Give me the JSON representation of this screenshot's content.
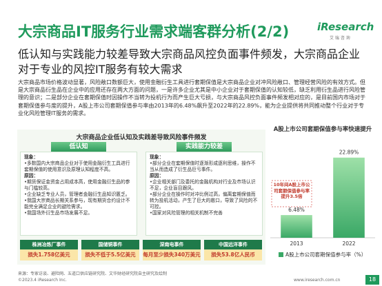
{
  "header": {
    "title": "大宗商品IT服务行业需求端客群分析(2/2)",
    "logo": "iResearch",
    "logo_sub": "艾 瑞 咨 询"
  },
  "headline": "低认知与实践能力较差导致大宗商品风控负面事件频发，大宗商品企业对于专业的风控IT服务有较大需求",
  "body": "大宗商品市场价格波动显著，风险敞口数额巨大，使用金融衍生工具进行套期保值是大宗商品企业对冲风险敞口、管理经营风险的有效方式。但是大宗商品衍生品在企业中的应用还存在两大方面的问题，一是许多企业尤其是中小企业对于套期保值的认知较低，缺乏利用衍生品进行风险管理的意识；二是部分企业在套期保值时因操作不当转为投机行为而产生巨大亏损，与大宗商品风控负面事件频发相对应的，是目前国内市场对于套期保值参与度的提升，A股上市公司套期保值参与率由2013年的6.48%飙升至2022年的22.89%，能为企业提供将共同推动整个行业对于专业化风险管理IT服务的需求。",
  "panel": {
    "title": "大宗商品企业低认知及实践差导致风险事件频发",
    "columns": [
      {
        "tab": "低认知",
        "phenomenon_label": "现象：",
        "phenomenon": [
          "•多数国内大宗商品企业对于使用金融衍生工具进行套期保值的使用意识及原理认知程度不高。"
        ],
        "cause_label": "原因：",
        "causes": [
          "•期货保证金资金占用成本高，使用金融衍生品的参与门槛较高。",
          "•企业缺乏专业人员，管理者金融衍生品知识匮乏。",
          "•我国大宗商品长期关系参与，现有期货合约设计不能完全满足企业的避险需求。",
          "•我国场外衍生品市场发展不足。"
        ]
      },
      {
        "tab": "实践能力较差",
        "phenomenon_label": "现象：",
        "phenomenon": [
          "•部分企业在套期保值时逐渐形成逐利思维，操作不当从而造成了衍生品巨亏事件。"
        ],
        "cause_label": "原因：",
        "causes": [
          "•企业相关部门及委托的金融机构对行业及市场认识不足，企业盲目跟风。",
          "•部分企业在操作时对冲比例过高，偏离套期保值而转为投机活动，产生了巨大的敞口，导致了风险的不可控。",
          "•国家对风险管理的相关机制不完善"
        ]
      }
    ]
  },
  "events": [
    {
      "name": "株洲冶炼厂事件",
      "loss": "损失1.758亿美元"
    },
    {
      "name": "国储铜事件",
      "loss": "损失不低于5.5亿美元"
    },
    {
      "name": "深南电事件",
      "loss": "每月至少损失340万美元"
    },
    {
      "name": "中国远洋事件",
      "loss": "损失53.8亿人民币"
    }
  ],
  "chart_data": {
    "type": "bar",
    "title": "A股上市公司套期保值参与率快速提升",
    "categories": [
      "2013",
      "2022"
    ],
    "values": [
      6.48,
      22.89
    ],
    "value_labels": [
      "6.48%",
      "22.89%"
    ],
    "color": "#3aa866",
    "ylim": [
      0,
      25
    ],
    "annotation": "10年间A股上市公司套期保值参与率提升3.5倍",
    "legend": "A股上市公司套期保值参与率（%）"
  },
  "footer": {
    "source": "来源：专家访谈、避险网、五道口供应链研究院、文华财经研究院自主研究及绘制",
    "copyright": "©2023.4 iResearch Inc.",
    "url": "www.iresearch.com.cn",
    "page": "18"
  }
}
